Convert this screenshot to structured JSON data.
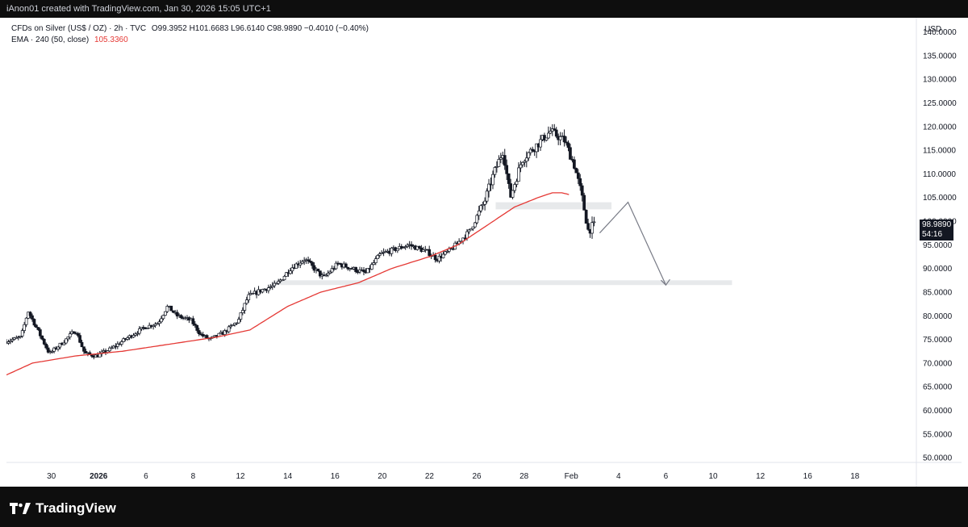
{
  "credit": "iAnon01 created with TradingView.com, Jan 30, 2026 15:05 UTC+1",
  "legend": {
    "symbol": "CFDs on Silver (US$ / OZ) · 2h · TVC",
    "ohlc": "O99.3952 H101.6683 L96.6140 C98.9890 −0.4010 (−0.40%)",
    "ema_label": "EMA · 240 (50, close)",
    "ema_value": "105.3360"
  },
  "price_tag": {
    "price": "98.9890",
    "countdown": "54:16"
  },
  "brand": {
    "name": "TradingView",
    "logo_icon": "tradingview-logo-icon"
  },
  "colors": {
    "up": "#131722",
    "down": "#131722",
    "ema": "#e53935",
    "zone": "#e3e5e8",
    "arrow": "#787b86"
  },
  "chart_data": {
    "type": "candlestick",
    "currency_label": "USD",
    "y_ticks": [
      "140.0000",
      "135.0000",
      "130.0000",
      "125.0000",
      "120.0000",
      "115.0000",
      "110.0000",
      "105.0000",
      "100.0000",
      "95.0000",
      "90.0000",
      "85.0000",
      "80.0000",
      "75.0000",
      "70.0000",
      "65.0000",
      "60.0000",
      "55.0000",
      "50.0000"
    ],
    "y_tick_values": [
      140,
      135,
      130,
      125,
      120,
      115,
      110,
      105,
      100,
      95,
      90,
      85,
      80,
      75,
      70,
      65,
      60,
      55,
      50
    ],
    "ylim": [
      49,
      143
    ],
    "x_ticks": [
      {
        "label": "30",
        "x": 0
      },
      {
        "label": "2026",
        "x": 1,
        "bold": true
      },
      {
        "label": "6",
        "x": 2
      },
      {
        "label": "8",
        "x": 3
      },
      {
        "label": "12",
        "x": 4
      },
      {
        "label": "14",
        "x": 5
      },
      {
        "label": "16",
        "x": 6
      },
      {
        "label": "20",
        "x": 7
      },
      {
        "label": "22",
        "x": 8
      },
      {
        "label": "26",
        "x": 9
      },
      {
        "label": "28",
        "x": 10
      },
      {
        "label": "Feb",
        "x": 11
      },
      {
        "label": "4",
        "x": 12
      },
      {
        "label": "6",
        "x": 13
      },
      {
        "label": "10",
        "x": 14
      },
      {
        "label": "12",
        "x": 15
      },
      {
        "label": "16",
        "x": 16
      },
      {
        "label": "18",
        "x": 17
      }
    ],
    "xlim": [
      -0.95,
      18.3
    ],
    "price_anchors": [
      [
        -0.95,
        74.5
      ],
      [
        -0.6,
        75.5
      ],
      [
        -0.45,
        81
      ],
      [
        -0.2,
        76
      ],
      [
        0.0,
        72
      ],
      [
        0.3,
        74.5
      ],
      [
        0.55,
        77
      ],
      [
        0.75,
        72
      ],
      [
        1.0,
        71.5
      ],
      [
        1.3,
        73
      ],
      [
        1.6,
        75
      ],
      [
        2.0,
        77.5
      ],
      [
        2.3,
        78.5
      ],
      [
        2.5,
        82
      ],
      [
        2.7,
        80
      ],
      [
        3.0,
        79
      ],
      [
        3.2,
        76
      ],
      [
        3.4,
        75
      ],
      [
        3.7,
        76.5
      ],
      [
        4.0,
        79
      ],
      [
        4.2,
        84
      ],
      [
        4.5,
        85.5
      ],
      [
        4.8,
        86.5
      ],
      [
        5.1,
        90
      ],
      [
        5.4,
        92
      ],
      [
        5.6,
        90
      ],
      [
        5.8,
        88
      ],
      [
        6.1,
        91
      ],
      [
        6.4,
        90
      ],
      [
        6.7,
        89
      ],
      [
        7.0,
        93
      ],
      [
        7.3,
        94
      ],
      [
        7.6,
        95
      ],
      [
        8.0,
        93.5
      ],
      [
        8.2,
        92
      ],
      [
        8.5,
        94
      ],
      [
        8.9,
        98
      ],
      [
        9.2,
        104
      ],
      [
        9.4,
        110
      ],
      [
        9.6,
        115
      ],
      [
        9.75,
        105
      ],
      [
        10.0,
        113
      ],
      [
        10.3,
        116
      ],
      [
        10.6,
        119
      ],
      [
        10.9,
        117
      ],
      [
        11.1,
        112
      ],
      [
        11.25,
        106
      ],
      [
        11.4,
        98
      ],
      [
        11.5,
        99
      ]
    ],
    "ema_anchors": [
      [
        -0.95,
        67.5
      ],
      [
        -0.4,
        70
      ],
      [
        0.5,
        71.5
      ],
      [
        1.5,
        72.5
      ],
      [
        2.5,
        74
      ],
      [
        3.5,
        75.5
      ],
      [
        4.2,
        77
      ],
      [
        5.0,
        82
      ],
      [
        5.7,
        85
      ],
      [
        6.5,
        87
      ],
      [
        7.2,
        90
      ],
      [
        8.0,
        92.5
      ],
      [
        8.6,
        95
      ],
      [
        9.2,
        99
      ],
      [
        9.8,
        103
      ],
      [
        10.3,
        105
      ],
      [
        10.6,
        106
      ],
      [
        10.8,
        106
      ],
      [
        11.0,
        105.5
      ]
    ],
    "zones": [
      {
        "x0": 9.4,
        "x1": 11.85,
        "y0": 102.5,
        "y1": 104.0
      },
      {
        "x0": 4.7,
        "x1": 14.4,
        "y0": 86.5,
        "y1": 87.5
      }
    ],
    "projection": [
      [
        11.6,
        97.5
      ],
      [
        12.2,
        104
      ],
      [
        13.0,
        86.5
      ]
    ],
    "last_price": 98.989
  }
}
